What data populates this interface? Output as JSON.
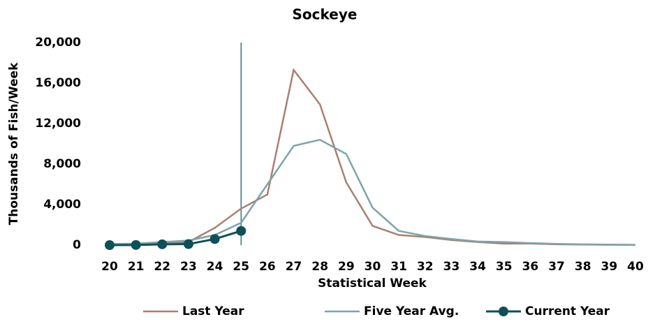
{
  "chart_data": {
    "type": "line",
    "title": "Sockeye",
    "x_label": "Statistical Week",
    "y_label": "Thousands of Fish/Week",
    "categories": [
      "20",
      "21",
      "22",
      "23",
      "24",
      "25",
      "26",
      "27",
      "28",
      "29",
      "30",
      "31",
      "32",
      "33",
      "34",
      "35",
      "36",
      "37",
      "38",
      "39",
      "40"
    ],
    "series": [
      {
        "name": "Last Year",
        "color": "#a97f70",
        "values": [
          50,
          100,
          150,
          300,
          1700,
          3600,
          5000,
          17300,
          13900,
          6200,
          1900,
          1000,
          800,
          500,
          300,
          150,
          150,
          80,
          50,
          30,
          20
        ]
      },
      {
        "name": "Five Year Avg.",
        "color": "#7ba5aa",
        "values": [
          100,
          150,
          300,
          450,
          1000,
          2200,
          6000,
          9800,
          10400,
          9000,
          3700,
          1400,
          900,
          600,
          350,
          300,
          200,
          120,
          80,
          50,
          30
        ]
      },
      {
        "name": "Current Year",
        "color": "#0e5058",
        "markers": true,
        "values": [
          0,
          10,
          80,
          100,
          600,
          1400,
          null,
          null,
          null,
          null,
          null,
          null,
          null,
          null,
          null,
          null,
          null,
          null,
          null,
          null,
          null
        ]
      }
    ],
    "ylim": [
      0,
      20000
    ],
    "yticks": [
      0,
      {
        "value": 4000,
        "label": "4,000"
      },
      {
        "value": 8000,
        "label": "8,000"
      },
      {
        "value": 12000,
        "label": "12,000"
      },
      {
        "value": 16000,
        "label": "16,000"
      },
      {
        "value": 20000,
        "label": "20,000"
      }
    ],
    "grid": false,
    "legend": "bottom"
  }
}
